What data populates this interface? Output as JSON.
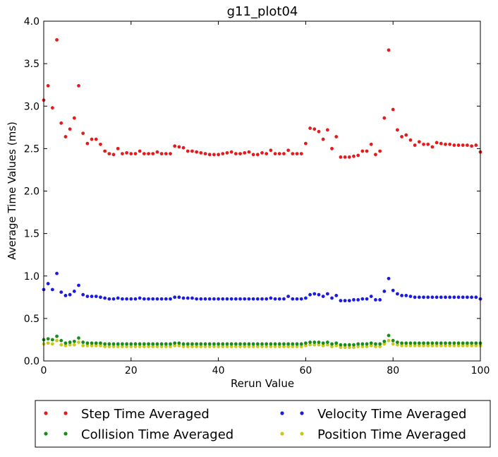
{
  "chart_data": {
    "type": "scatter",
    "title": "g11_plot04",
    "xlabel": "Rerun Value",
    "ylabel": "Average Time Values (ms)",
    "xlim": [
      0,
      100
    ],
    "ylim": [
      0,
      4.0
    ],
    "x_ticks": [
      0,
      20,
      40,
      60,
      80,
      100
    ],
    "y_ticks": [
      0.0,
      0.5,
      1.0,
      1.5,
      2.0,
      2.5,
      3.0,
      3.5,
      4.0
    ],
    "grid": false,
    "legend_position": "bottom",
    "series": [
      {
        "name": "Step Time Averaged",
        "color": "#e41a1c",
        "values": [
          3.07,
          3.24,
          2.98,
          3.78,
          2.8,
          2.64,
          2.73,
          2.86,
          3.24,
          2.68,
          2.56,
          2.61,
          2.61,
          2.55,
          2.47,
          2.44,
          2.43,
          2.5,
          2.44,
          2.45,
          2.44,
          2.44,
          2.47,
          2.44,
          2.44,
          2.44,
          2.46,
          2.44,
          2.44,
          2.44,
          2.53,
          2.52,
          2.51,
          2.47,
          2.47,
          2.46,
          2.45,
          2.44,
          2.43,
          2.43,
          2.43,
          2.44,
          2.45,
          2.46,
          2.44,
          2.44,
          2.45,
          2.46,
          2.43,
          2.43,
          2.45,
          2.44,
          2.48,
          2.44,
          2.44,
          2.44,
          2.48,
          2.44,
          2.44,
          2.44,
          2.56,
          2.74,
          2.73,
          2.7,
          2.61,
          2.72,
          2.5,
          2.64,
          2.4,
          2.4,
          2.4,
          2.41,
          2.42,
          2.47,
          2.47,
          2.55,
          2.43,
          2.47,
          2.86,
          3.66,
          2.96,
          2.72,
          2.64,
          2.66,
          2.6,
          2.54,
          2.58,
          2.55,
          2.55,
          2.52,
          2.57,
          2.56,
          2.55,
          2.55,
          2.54,
          2.54,
          2.54,
          2.54,
          2.53,
          2.54,
          2.46
        ]
      },
      {
        "name": "Collision Time Averaged",
        "color": "#1a8c1a",
        "values": [
          0.25,
          0.26,
          0.25,
          0.29,
          0.24,
          0.21,
          0.22,
          0.23,
          0.27,
          0.22,
          0.21,
          0.21,
          0.21,
          0.21,
          0.2,
          0.2,
          0.2,
          0.2,
          0.2,
          0.2,
          0.2,
          0.2,
          0.2,
          0.2,
          0.2,
          0.2,
          0.2,
          0.2,
          0.2,
          0.2,
          0.21,
          0.21,
          0.2,
          0.2,
          0.2,
          0.2,
          0.2,
          0.2,
          0.2,
          0.2,
          0.2,
          0.2,
          0.2,
          0.2,
          0.2,
          0.2,
          0.2,
          0.2,
          0.2,
          0.2,
          0.2,
          0.2,
          0.2,
          0.2,
          0.2,
          0.2,
          0.2,
          0.2,
          0.2,
          0.2,
          0.21,
          0.22,
          0.22,
          0.22,
          0.21,
          0.22,
          0.2,
          0.21,
          0.19,
          0.19,
          0.19,
          0.19,
          0.2,
          0.2,
          0.2,
          0.21,
          0.2,
          0.2,
          0.23,
          0.3,
          0.24,
          0.22,
          0.21,
          0.21,
          0.21,
          0.21,
          0.21,
          0.21,
          0.21,
          0.21,
          0.21,
          0.21,
          0.21,
          0.21,
          0.21,
          0.21,
          0.21,
          0.21,
          0.21,
          0.21,
          0.21
        ]
      },
      {
        "name": "Velocity Time Averaged",
        "color": "#1a1ae0",
        "values": [
          0.84,
          0.91,
          0.84,
          1.03,
          0.81,
          0.77,
          0.78,
          0.82,
          0.89,
          0.78,
          0.76,
          0.76,
          0.76,
          0.75,
          0.74,
          0.73,
          0.73,
          0.74,
          0.73,
          0.73,
          0.73,
          0.73,
          0.74,
          0.73,
          0.73,
          0.73,
          0.73,
          0.73,
          0.73,
          0.73,
          0.75,
          0.75,
          0.74,
          0.74,
          0.74,
          0.73,
          0.73,
          0.73,
          0.73,
          0.73,
          0.73,
          0.73,
          0.73,
          0.73,
          0.73,
          0.73,
          0.73,
          0.73,
          0.73,
          0.73,
          0.73,
          0.73,
          0.74,
          0.73,
          0.73,
          0.73,
          0.76,
          0.73,
          0.73,
          0.73,
          0.74,
          0.78,
          0.79,
          0.78,
          0.76,
          0.79,
          0.74,
          0.77,
          0.71,
          0.71,
          0.71,
          0.72,
          0.72,
          0.73,
          0.73,
          0.76,
          0.72,
          0.72,
          0.82,
          0.97,
          0.83,
          0.79,
          0.77,
          0.77,
          0.76,
          0.75,
          0.75,
          0.75,
          0.75,
          0.75,
          0.75,
          0.75,
          0.75,
          0.75,
          0.75,
          0.75,
          0.75,
          0.75,
          0.75,
          0.75,
          0.73
        ]
      },
      {
        "name": "Position Time Averaged",
        "color": "#c8c81a",
        "values": [
          0.2,
          0.21,
          0.2,
          0.24,
          0.19,
          0.18,
          0.19,
          0.19,
          0.22,
          0.18,
          0.18,
          0.18,
          0.18,
          0.18,
          0.17,
          0.17,
          0.17,
          0.17,
          0.17,
          0.17,
          0.17,
          0.17,
          0.17,
          0.17,
          0.17,
          0.17,
          0.17,
          0.17,
          0.17,
          0.17,
          0.18,
          0.18,
          0.17,
          0.17,
          0.17,
          0.17,
          0.17,
          0.17,
          0.17,
          0.17,
          0.17,
          0.17,
          0.17,
          0.17,
          0.17,
          0.17,
          0.17,
          0.17,
          0.17,
          0.17,
          0.17,
          0.17,
          0.17,
          0.17,
          0.17,
          0.17,
          0.17,
          0.17,
          0.17,
          0.17,
          0.18,
          0.19,
          0.19,
          0.19,
          0.18,
          0.19,
          0.17,
          0.18,
          0.16,
          0.16,
          0.16,
          0.16,
          0.17,
          0.17,
          0.17,
          0.18,
          0.17,
          0.17,
          0.2,
          0.24,
          0.2,
          0.19,
          0.18,
          0.18,
          0.18,
          0.18,
          0.18,
          0.18,
          0.18,
          0.18,
          0.18,
          0.18,
          0.18,
          0.18,
          0.18,
          0.18,
          0.18,
          0.18,
          0.18,
          0.18,
          0.18
        ]
      }
    ]
  }
}
